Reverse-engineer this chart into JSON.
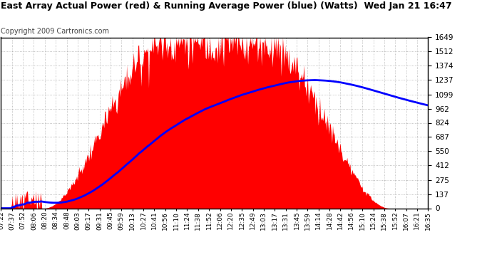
{
  "title": "East Array Actual Power (red) & Running Average Power (blue) (Watts)  Wed Jan 21 16:47",
  "copyright": "Copyright 2009 Cartronics.com",
  "background_color": "#ffffff",
  "plot_bg_color": "#ffffff",
  "grid_color": "#999999",
  "yticks": [
    0.0,
    137.4,
    274.8,
    412.3,
    549.7,
    687.1,
    824.5,
    961.9,
    1099.3,
    1236.8,
    1374.2,
    1511.6,
    1649.0
  ],
  "x_labels": [
    "07:22",
    "07:37",
    "07:52",
    "08:06",
    "08:20",
    "08:34",
    "08:48",
    "09:03",
    "09:17",
    "09:31",
    "09:45",
    "09:59",
    "10:13",
    "10:27",
    "10:41",
    "10:56",
    "11:10",
    "11:24",
    "11:38",
    "11:52",
    "12:06",
    "12:20",
    "12:35",
    "12:49",
    "13:03",
    "13:17",
    "13:31",
    "13:45",
    "13:59",
    "14:14",
    "14:28",
    "14:42",
    "14:56",
    "15:10",
    "15:24",
    "15:38",
    "15:52",
    "16:07",
    "16:21",
    "16:35"
  ],
  "actual_color": "#ff0000",
  "average_color": "#0000ff",
  "ymax": 1649.0,
  "ymin": 0.0,
  "title_fontsize": 9.0,
  "copyright_fontsize": 7.0,
  "ytick_fontsize": 7.5,
  "xtick_fontsize": 6.5
}
